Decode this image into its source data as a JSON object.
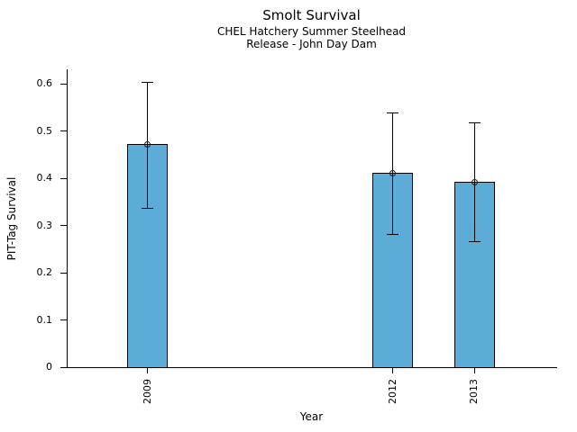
{
  "figure": {
    "background": "#ffffff",
    "text_color": "#000000"
  },
  "chart_data": {
    "type": "bar",
    "title": "Smolt Survival",
    "subtitle_lines": [
      "CHEL Hatchery Summer Steelhead",
      "Release - John Day Dam"
    ],
    "xlabel": "Year",
    "ylabel": "PIT-Tag Survival",
    "categories": [
      "2009",
      "2012",
      "2013"
    ],
    "x_values": [
      2009,
      2012,
      2013
    ],
    "values": [
      0.472,
      0.411,
      0.392
    ],
    "error_low": [
      0.337,
      0.281,
      0.266
    ],
    "error_high": [
      0.604,
      0.539,
      0.518
    ],
    "y_tick_labels": [
      "0",
      "0.1",
      "0.2",
      "0.3",
      "0.4",
      "0.5",
      "0.6"
    ],
    "y_tick_values": [
      0,
      0.1,
      0.2,
      0.3,
      0.4,
      0.5,
      0.6
    ],
    "xlim": [
      2008.01,
      2014.0
    ],
    "ylim": [
      0,
      0.631
    ],
    "bar_width_years": 0.5,
    "bar_color": "#5BACD6",
    "bar_edge_color": "#000000",
    "error_color": "#000000",
    "marker": "open-circle",
    "grid": false,
    "legend": false
  }
}
